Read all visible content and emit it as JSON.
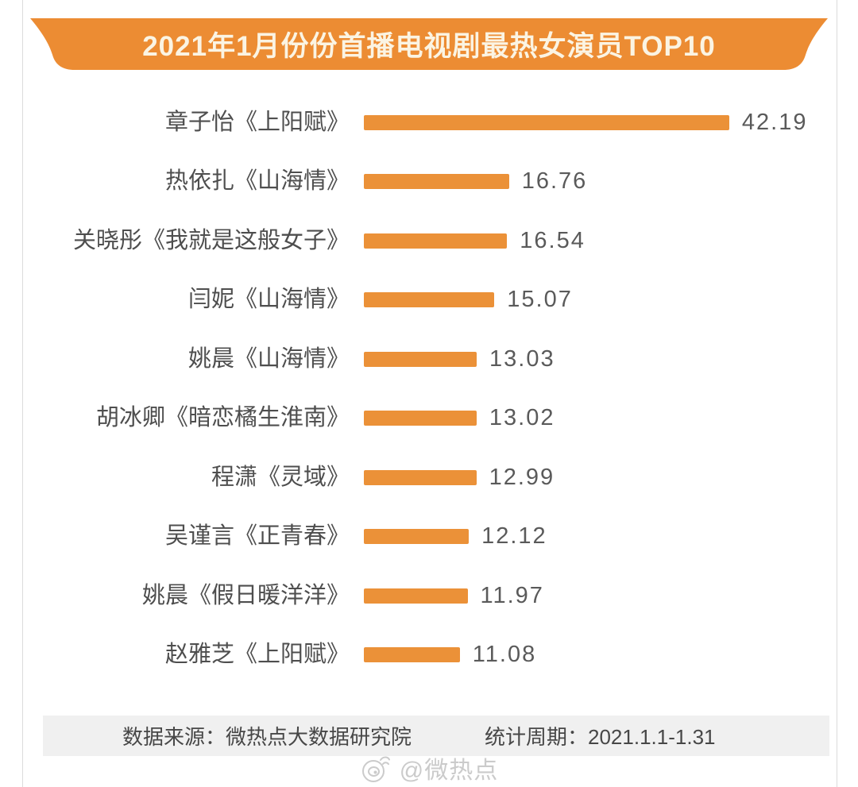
{
  "header": {
    "title": "2021年1月份份首播电视剧最热女演员TOP10"
  },
  "chart_data": {
    "type": "bar",
    "orientation": "horizontal",
    "title": "2021年1月份份首播电视剧最热女演员TOP10",
    "categories": [
      "章子怡《上阳赋》",
      "热依扎《山海情》",
      "关晓彤《我就是这般女子》",
      "闫妮《山海情》",
      "姚晨《山海情》",
      "胡冰卿《暗恋橘生淮南》",
      "程潇《灵域》",
      "吴谨言《正青春》",
      "姚晨《假日暖洋洋》",
      "赵雅芝《上阳赋》"
    ],
    "values": [
      42.19,
      16.76,
      16.54,
      15.07,
      13.03,
      13.02,
      12.99,
      12.12,
      11.97,
      11.08
    ],
    "xlim": [
      0,
      44
    ],
    "grid": false,
    "legend": false,
    "value_labels": "right-of-bar"
  },
  "footer": {
    "source_label": "数据来源：微热点大数据研究院",
    "period_label": "统计周期：2021.1.1-1.31"
  },
  "watermark": {
    "icon": "weibo-doodle-icon",
    "text": "@微热点"
  },
  "colors": {
    "accent": "#ec8c33",
    "bar": "#eb9138",
    "title-text": "#fbf4e3",
    "label": "#4e4e4e",
    "value": "#5a5a5a",
    "footer-bg": "#f0f0f0",
    "footer-text": "#474747",
    "watermark": "#cbcbcb",
    "edge": "#dbdbdb"
  }
}
